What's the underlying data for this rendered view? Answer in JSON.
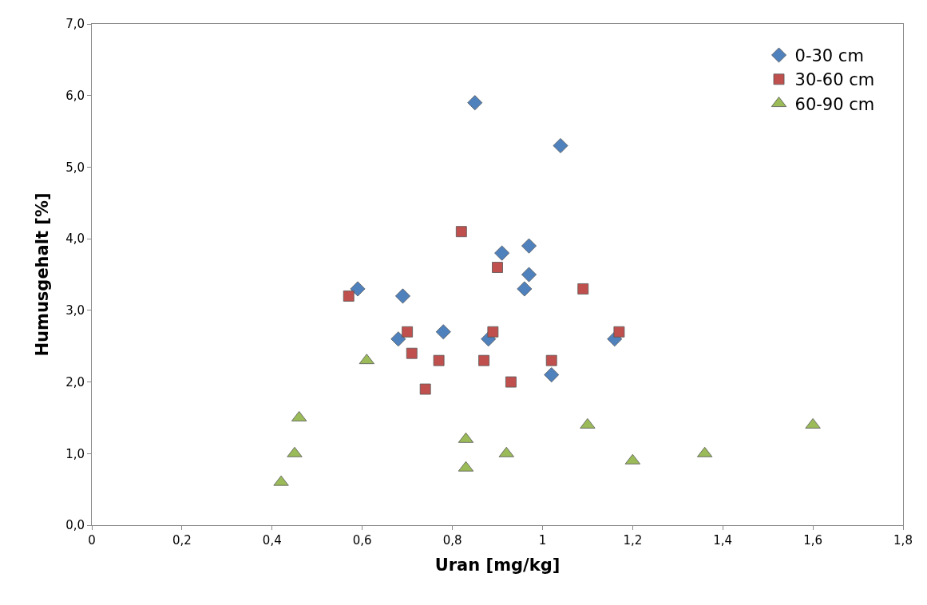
{
  "chart_data": {
    "type": "scatter",
    "xlabel": "Uran [mg/kg]",
    "ylabel": "Humusgehalt [%]",
    "xlim": [
      0,
      1.8
    ],
    "ylim": [
      0,
      7
    ],
    "xticks": [
      0,
      {
        "value": 0.2,
        "label": "0,2"
      },
      {
        "value": 0.4,
        "label": "0,4"
      },
      {
        "value": 0.6,
        "label": "0,6"
      },
      {
        "value": 0.8,
        "label": "0,8"
      },
      1,
      {
        "value": 1.2,
        "label": "1,2"
      },
      {
        "value": 1.4,
        "label": "1,4"
      },
      {
        "value": 1.6,
        "label": "1,6"
      },
      {
        "value": 1.8,
        "label": "1,8"
      }
    ],
    "yticks": [
      {
        "value": 0,
        "label": "0,0"
      },
      {
        "value": 1,
        "label": "1,0"
      },
      {
        "value": 2,
        "label": "2,0"
      },
      {
        "value": 3,
        "label": "3,0"
      },
      {
        "value": 4,
        "label": "4,0"
      },
      {
        "value": 5,
        "label": "5,0"
      },
      {
        "value": 6,
        "label": "6,0"
      },
      {
        "value": 7,
        "label": "7,0"
      }
    ],
    "grid": false,
    "legend": "top right",
    "series": [
      {
        "name": "0-30 cm",
        "color": "#4f81bd",
        "marker": "diamond",
        "x": [
          0.85,
          1.04,
          0.59,
          0.69,
          0.68,
          0.78,
          0.91,
          0.97,
          0.97,
          0.96,
          0.88,
          1.02,
          1.16
        ],
        "values": [
          5.9,
          5.3,
          3.3,
          3.2,
          2.6,
          2.7,
          3.8,
          3.9,
          3.5,
          3.3,
          2.6,
          2.1,
          2.6
        ]
      },
      {
        "name": "30-60 cm",
        "color": "#c0504d",
        "marker": "square",
        "x": [
          0.57,
          0.82,
          0.9,
          1.09,
          0.7,
          0.71,
          0.77,
          0.74,
          0.89,
          0.87,
          0.93,
          1.02,
          1.17
        ],
        "values": [
          3.2,
          4.1,
          3.6,
          3.3,
          2.7,
          2.4,
          2.3,
          1.9,
          2.7,
          2.3,
          2.0,
          2.3,
          2.7
        ]
      },
      {
        "name": "60-90 cm",
        "color": "#9bbb59",
        "marker": "triangle",
        "x": [
          0.61,
          0.46,
          0.45,
          0.42,
          0.83,
          0.83,
          0.92,
          1.1,
          1.2,
          1.36,
          1.6
        ],
        "values": [
          2.3,
          1.5,
          1.0,
          0.6,
          1.2,
          0.8,
          1.0,
          1.4,
          0.9,
          1.0,
          1.4
        ]
      }
    ]
  }
}
